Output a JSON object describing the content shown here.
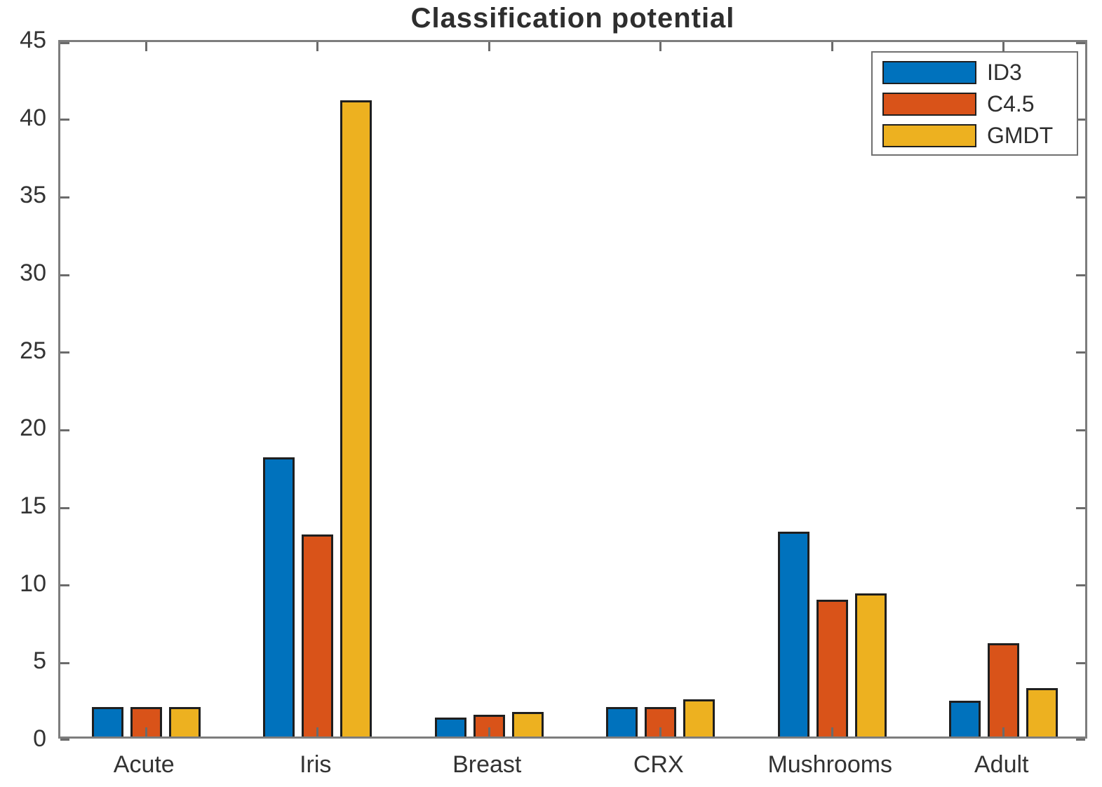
{
  "figure": {
    "background": "#ffffff"
  },
  "chart_data": {
    "type": "bar",
    "title": "Classification potential",
    "categories": [
      "Acute",
      "Iris",
      "Breast",
      "CRX",
      "Mushrooms",
      "Adult"
    ],
    "series": [
      {
        "name": "ID3",
        "color": "#0072BD",
        "values": [
          1.9,
          18,
          1.2,
          1.9,
          13.2,
          2.3
        ]
      },
      {
        "name": "C4.5",
        "color": "#D95319",
        "values": [
          1.9,
          13,
          1.4,
          1.9,
          8.8,
          6.0
        ]
      },
      {
        "name": "GMDT",
        "color": "#EDB120",
        "values": [
          1.9,
          41,
          1.6,
          2.4,
          9.2,
          3.1
        ]
      }
    ],
    "xlabel": "",
    "ylabel": "",
    "ylim": [
      0,
      45
    ],
    "yticks": [
      0,
      5,
      10,
      15,
      20,
      25,
      30,
      35,
      40,
      45
    ],
    "grid": false,
    "legend_position": "top-right",
    "bar_edge_color": "#1f1f1f",
    "axis_color": "#7d7d7d",
    "tick_color": "#6b6b6b",
    "text_color": "#333333"
  }
}
